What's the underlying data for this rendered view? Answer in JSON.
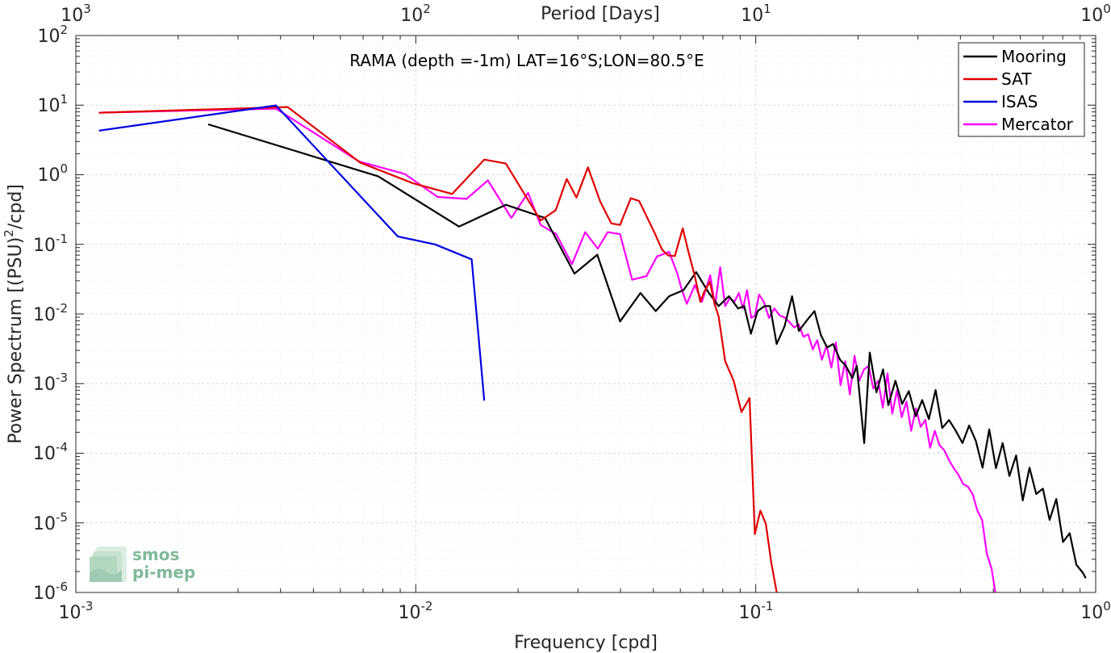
{
  "chart_data": {
    "type": "line",
    "title": "RAMA (depth =-1m) LAT=16°S;LON=80.5°E",
    "xlabel": "Frequency [cpd]",
    "ylabel_main": "Power Spectrum [(PSU)",
    "ylabel_sup": "2",
    "ylabel_tail": "/cpd]",
    "x2label": "Period [Days]",
    "x_scale": "log",
    "y_scale": "log",
    "xlim": [
      0.001,
      1
    ],
    "ylim": [
      1e-06,
      100
    ],
    "grid": true,
    "legend_position": "top-right",
    "x_ticks": [
      {
        "value": 0.001,
        "base": "10",
        "exp": "-3"
      },
      {
        "value": 0.01,
        "base": "10",
        "exp": "-2"
      },
      {
        "value": 0.1,
        "base": "10",
        "exp": "-1"
      },
      {
        "value": 1,
        "base": "10",
        "exp": "0"
      }
    ],
    "x2_ticks": [
      {
        "value": 0.001,
        "base": "10",
        "exp": "3"
      },
      {
        "value": 0.01,
        "base": "10",
        "exp": "2"
      },
      {
        "value": 0.1,
        "base": "10",
        "exp": "1"
      },
      {
        "value": 1,
        "base": "10",
        "exp": "0"
      }
    ],
    "y_ticks": [
      {
        "value": 100,
        "base": "10",
        "exp": "2"
      },
      {
        "value": 10,
        "base": "10",
        "exp": "1"
      },
      {
        "value": 1,
        "base": "10",
        "exp": "0"
      },
      {
        "value": 0.1,
        "base": "10",
        "exp": "-1"
      },
      {
        "value": 0.01,
        "base": "10",
        "exp": "-2"
      },
      {
        "value": 0.001,
        "base": "10",
        "exp": "-3"
      },
      {
        "value": 0.0001,
        "base": "10",
        "exp": "-4"
      },
      {
        "value": 1e-05,
        "base": "10",
        "exp": "-5"
      },
      {
        "value": 1e-06,
        "base": "10",
        "exp": "-6"
      }
    ],
    "series": [
      {
        "name": "Mooring",
        "color": "#000000",
        "points": [
          [
            0.00245,
            5.3
          ],
          [
            0.00775,
            0.95
          ],
          [
            0.0134,
            0.18
          ],
          [
            0.0184,
            0.37
          ],
          [
            0.024,
            0.24
          ],
          [
            0.0293,
            0.038
          ],
          [
            0.0342,
            0.071
          ],
          [
            0.0399,
            0.0078
          ],
          [
            0.0458,
            0.02
          ],
          [
            0.0508,
            0.011
          ],
          [
            0.0556,
            0.018
          ],
          [
            0.0613,
            0.022
          ],
          [
            0.0668,
            0.04
          ],
          [
            0.0728,
            0.02
          ],
          [
            0.0778,
            0.013
          ],
          [
            0.0834,
            0.018
          ],
          [
            0.0888,
            0.012
          ],
          [
            0.0925,
            0.013
          ],
          [
            0.0968,
            0.0052
          ],
          [
            0.1013,
            0.011
          ],
          [
            0.1062,
            0.013
          ],
          [
            0.1102,
            0.013
          ],
          [
            0.1152,
            0.0037
          ],
          [
            0.1215,
            0.0066
          ],
          [
            0.1279,
            0.018
          ],
          [
            0.1339,
            0.0057
          ],
          [
            0.1417,
            0.0082
          ],
          [
            0.1489,
            0.011
          ],
          [
            0.1555,
            0.005
          ],
          [
            0.1621,
            0.0033
          ],
          [
            0.1689,
            0.0037
          ],
          [
            0.1771,
            0.0022
          ],
          [
            0.1842,
            0.0018
          ],
          [
            0.1924,
            0.0012
          ],
          [
            0.1983,
            0.0018
          ],
          [
            0.2085,
            0.00014
          ],
          [
            0.2165,
            0.0028
          ],
          [
            0.2265,
            0.00075
          ],
          [
            0.2369,
            0.0016
          ],
          [
            0.2455,
            0.00049
          ],
          [
            0.2576,
            0.0011
          ],
          [
            0.2697,
            0.00051
          ],
          [
            0.2821,
            0.00078
          ],
          [
            0.2954,
            0.00034
          ],
          [
            0.3089,
            0.00058
          ],
          [
            0.3232,
            0.00031
          ],
          [
            0.3381,
            0.00081
          ],
          [
            0.3537,
            0.00023
          ],
          [
            0.3703,
            0.0003
          ],
          [
            0.3876,
            0.00021
          ],
          [
            0.4057,
            0.00014
          ],
          [
            0.4245,
            0.00025
          ],
          [
            0.4442,
            0.00015
          ],
          [
            0.4648,
            6.2e-05
          ],
          [
            0.4864,
            0.00022
          ],
          [
            0.5089,
            6.1e-05
          ],
          [
            0.5326,
            0.00014
          ],
          [
            0.5574,
            4.7e-05
          ],
          [
            0.5833,
            9.3e-05
          ],
          [
            0.6103,
            2.1e-05
          ],
          [
            0.6387,
            6.2e-05
          ],
          [
            0.6684,
            2.6e-05
          ],
          [
            0.6995,
            3.1e-05
          ],
          [
            0.7319,
            1.1e-05
          ],
          [
            0.7659,
            2.2e-05
          ],
          [
            0.8015,
            5.3e-06
          ],
          [
            0.8386,
            7.1e-06
          ],
          [
            0.8776,
            2.5e-06
          ],
          [
            0.9183,
            1.9e-06
          ],
          [
            0.9348,
            1.6e-06
          ]
        ]
      },
      {
        "name": "SAT",
        "color": "#e00000",
        "points": [
          [
            0.00117,
            7.8
          ],
          [
            0.0042,
            9.4
          ],
          [
            0.00685,
            1.5
          ],
          [
            0.00977,
            0.76
          ],
          [
            0.0128,
            0.53
          ],
          [
            0.0159,
            1.65
          ],
          [
            0.0184,
            1.45
          ],
          [
            0.0233,
            0.22
          ],
          [
            0.0258,
            0.31
          ],
          [
            0.0278,
            0.87
          ],
          [
            0.0297,
            0.47
          ],
          [
            0.0321,
            1.28
          ],
          [
            0.0349,
            0.41
          ],
          [
            0.0376,
            0.2
          ],
          [
            0.0399,
            0.19
          ],
          [
            0.0429,
            0.46
          ],
          [
            0.0454,
            0.42
          ],
          [
            0.0503,
            0.15
          ],
          [
            0.0531,
            0.083
          ],
          [
            0.0553,
            0.069
          ],
          [
            0.0578,
            0.068
          ],
          [
            0.061,
            0.17
          ],
          [
            0.0636,
            0.073
          ],
          [
            0.0662,
            0.035
          ],
          [
            0.0687,
            0.015
          ],
          [
            0.0706,
            0.021
          ],
          [
            0.0733,
            0.029
          ],
          [
            0.0757,
            0.014
          ],
          [
            0.0778,
            0.0092
          ],
          [
            0.0813,
            0.0021
          ],
          [
            0.0861,
            0.0011
          ],
          [
            0.0908,
            0.00039
          ],
          [
            0.0959,
            0.00062
          ],
          [
            0.0994,
            6.9e-06
          ],
          [
            0.1032,
            1.5e-05
          ],
          [
            0.1071,
            9.7e-06
          ],
          [
            0.1111,
            2.7e-06
          ],
          [
            0.1153,
            1e-06
          ]
        ]
      },
      {
        "name": "ISAS",
        "color": "#0000e0",
        "points": [
          [
            0.00117,
            4.3
          ],
          [
            0.00388,
            9.9
          ],
          [
            0.00885,
            0.13
          ],
          [
            0.0114,
            0.1
          ],
          [
            0.0146,
            0.061
          ],
          [
            0.0159,
            0.00057
          ]
        ]
      },
      {
        "name": "Mercator",
        "color": "#ff00ff",
        "points": [
          [
            0.00117,
            7.8
          ],
          [
            0.00388,
            8.9
          ],
          [
            0.00681,
            1.55
          ],
          [
            0.00927,
            1.03
          ],
          [
            0.0116,
            0.48
          ],
          [
            0.0141,
            0.45
          ],
          [
            0.0163,
            0.83
          ],
          [
            0.0191,
            0.24
          ],
          [
            0.0214,
            0.55
          ],
          [
            0.0233,
            0.19
          ],
          [
            0.0259,
            0.14
          ],
          [
            0.0288,
            0.052
          ],
          [
            0.0315,
            0.15
          ],
          [
            0.0343,
            0.087
          ],
          [
            0.0367,
            0.15
          ],
          [
            0.0399,
            0.14
          ],
          [
            0.0433,
            0.031
          ],
          [
            0.0477,
            0.035
          ],
          [
            0.0512,
            0.067
          ],
          [
            0.0556,
            0.078
          ],
          [
            0.0588,
            0.038
          ],
          [
            0.0605,
            0.023
          ],
          [
            0.0627,
            0.014
          ],
          [
            0.0662,
            0.026
          ],
          [
            0.0695,
            0.015
          ],
          [
            0.0735,
            0.036
          ],
          [
            0.0759,
            0.013
          ],
          [
            0.0786,
            0.047
          ],
          [
            0.0813,
            0.013
          ],
          [
            0.0839,
            0.017
          ],
          [
            0.0866,
            0.015
          ],
          [
            0.0892,
            0.02
          ],
          [
            0.0917,
            0.012
          ],
          [
            0.0943,
            0.022
          ],
          [
            0.097,
            0.0088
          ],
          [
            0.0995,
            0.0095
          ],
          [
            0.1023,
            0.019
          ],
          [
            0.1056,
            0.015
          ],
          [
            0.1094,
            0.0088
          ],
          [
            0.1134,
            0.012
          ],
          [
            0.1177,
            0.0095
          ],
          [
            0.1216,
            0.0089
          ],
          [
            0.1255,
            0.0077
          ],
          [
            0.1297,
            0.0064
          ],
          [
            0.1338,
            0.0071
          ],
          [
            0.1382,
            0.0047
          ],
          [
            0.1426,
            0.0051
          ],
          [
            0.1472,
            0.0031
          ],
          [
            0.1517,
            0.0042
          ],
          [
            0.1566,
            0.0022
          ],
          [
            0.1616,
            0.0035
          ],
          [
            0.1669,
            0.0017
          ],
          [
            0.1721,
            0.0039
          ],
          [
            0.1776,
            0.00095
          ],
          [
            0.1834,
            0.0021
          ],
          [
            0.1892,
            0.0007
          ],
          [
            0.1953,
            0.0025
          ],
          [
            0.2016,
            0.0011
          ],
          [
            0.2082,
            0.0016
          ],
          [
            0.2149,
            0.0018
          ],
          [
            0.2218,
            0.00085
          ],
          [
            0.2291,
            0.0011
          ],
          [
            0.2365,
            0.00045
          ],
          [
            0.2441,
            0.0014
          ],
          [
            0.2522,
            0.00037
          ],
          [
            0.2604,
            0.0008
          ],
          [
            0.2688,
            0.00033
          ],
          [
            0.2776,
            0.00055
          ],
          [
            0.2867,
            0.00021
          ],
          [
            0.2959,
            0.00044
          ],
          [
            0.3056,
            0.00024
          ],
          [
            0.3155,
            0.0003
          ],
          [
            0.3259,
            0.00012
          ],
          [
            0.3364,
            0.00021
          ],
          [
            0.3473,
            0.00013
          ],
          [
            0.3587,
            0.00011
          ],
          [
            0.3703,
            8e-05
          ],
          [
            0.3824,
            6.1e-05
          ],
          [
            0.3948,
            4.9e-05
          ],
          [
            0.4077,
            3.6e-05
          ],
          [
            0.4209,
            3.3e-05
          ],
          [
            0.4346,
            2.6e-05
          ],
          [
            0.4487,
            1.5e-05
          ],
          [
            0.4634,
            1.1e-05
          ],
          [
            0.4784,
            3.6e-06
          ],
          [
            0.4941,
            2.2e-06
          ],
          [
            0.5067,
            1e-06
          ]
        ]
      }
    ]
  },
  "watermark": {
    "line1": "smos",
    "line2": "pi-mep",
    "color": "#7fb99a"
  }
}
